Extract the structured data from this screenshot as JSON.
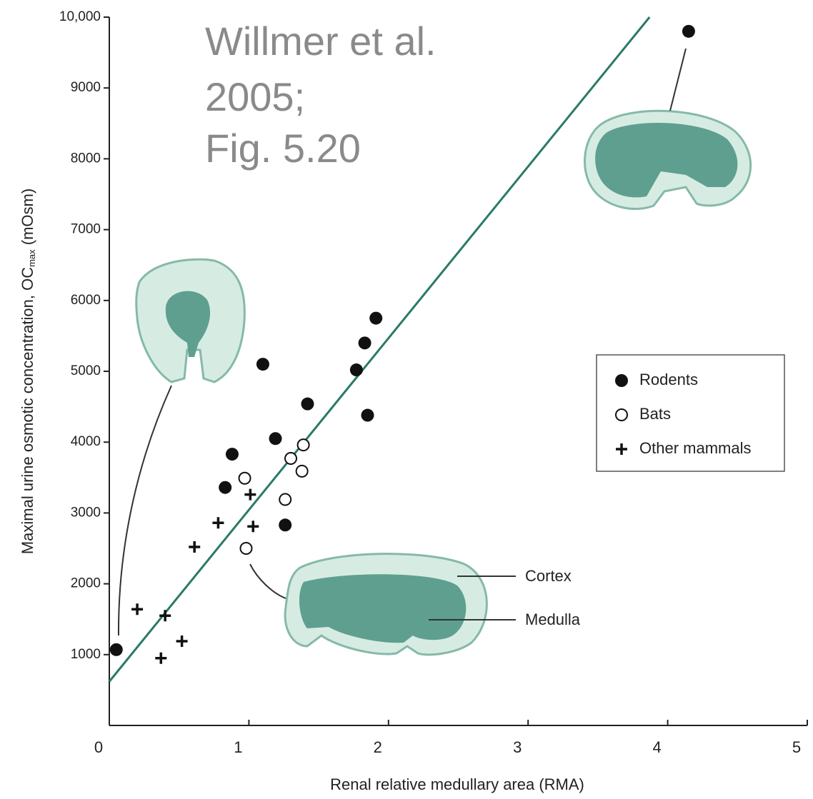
{
  "chart_data": {
    "type": "scatter",
    "annotation": [
      "Willmer et al.",
      "2005;",
      "Fig. 5.20"
    ],
    "x_label": "Renal relative medullary area (RMA)",
    "y_label": {
      "text": "Maximal urine osmotic concentration, OC",
      "sub": "max",
      "tail": " (mOsm)"
    },
    "xlim": [
      0,
      5
    ],
    "xticks": [
      0,
      1,
      2,
      3,
      4,
      5
    ],
    "ylim": [
      0,
      10000
    ],
    "yticks": [
      1000,
      2000,
      3000,
      4000,
      5000,
      6000,
      7000,
      8000,
      9000,
      {
        "value": 10000,
        "label": "10,000"
      }
    ],
    "legend_position": "center right",
    "series": [
      {
        "name": "Rodents",
        "color": "#111111",
        "marker": "filled-circle",
        "x": [
          0.05,
          0.83,
          0.88,
          1.1,
          1.19,
          1.26,
          1.42,
          1.77,
          1.83,
          1.91,
          1.85,
          4.15
        ],
        "values": [
          1070,
          3360,
          3830,
          5100,
          4050,
          2830,
          4540,
          5020,
          5400,
          5750,
          4380,
          9800
        ]
      },
      {
        "name": "Bats",
        "color": "#111111",
        "marker": "open-circle",
        "x": [
          0.97,
          1.3,
          1.39,
          1.38,
          1.26,
          0.98
        ],
        "values": [
          3490,
          3770,
          3960,
          3590,
          3190,
          2500
        ]
      },
      {
        "name": "Other mammals",
        "color": "#111111",
        "marker": "plus",
        "x": [
          0.2,
          0.4,
          0.37,
          0.52,
          0.61,
          0.78,
          1.01,
          1.03
        ],
        "values": [
          1640,
          1550,
          950,
          1190,
          2520,
          2860,
          3260,
          2810
        ]
      }
    ],
    "trend_line": {
      "color": "#2a7a68",
      "x": [
        0,
        3.87
      ],
      "y": [
        620,
        10000
      ]
    },
    "part_labels": [
      "Cortex",
      "Medulla"
    ]
  }
}
